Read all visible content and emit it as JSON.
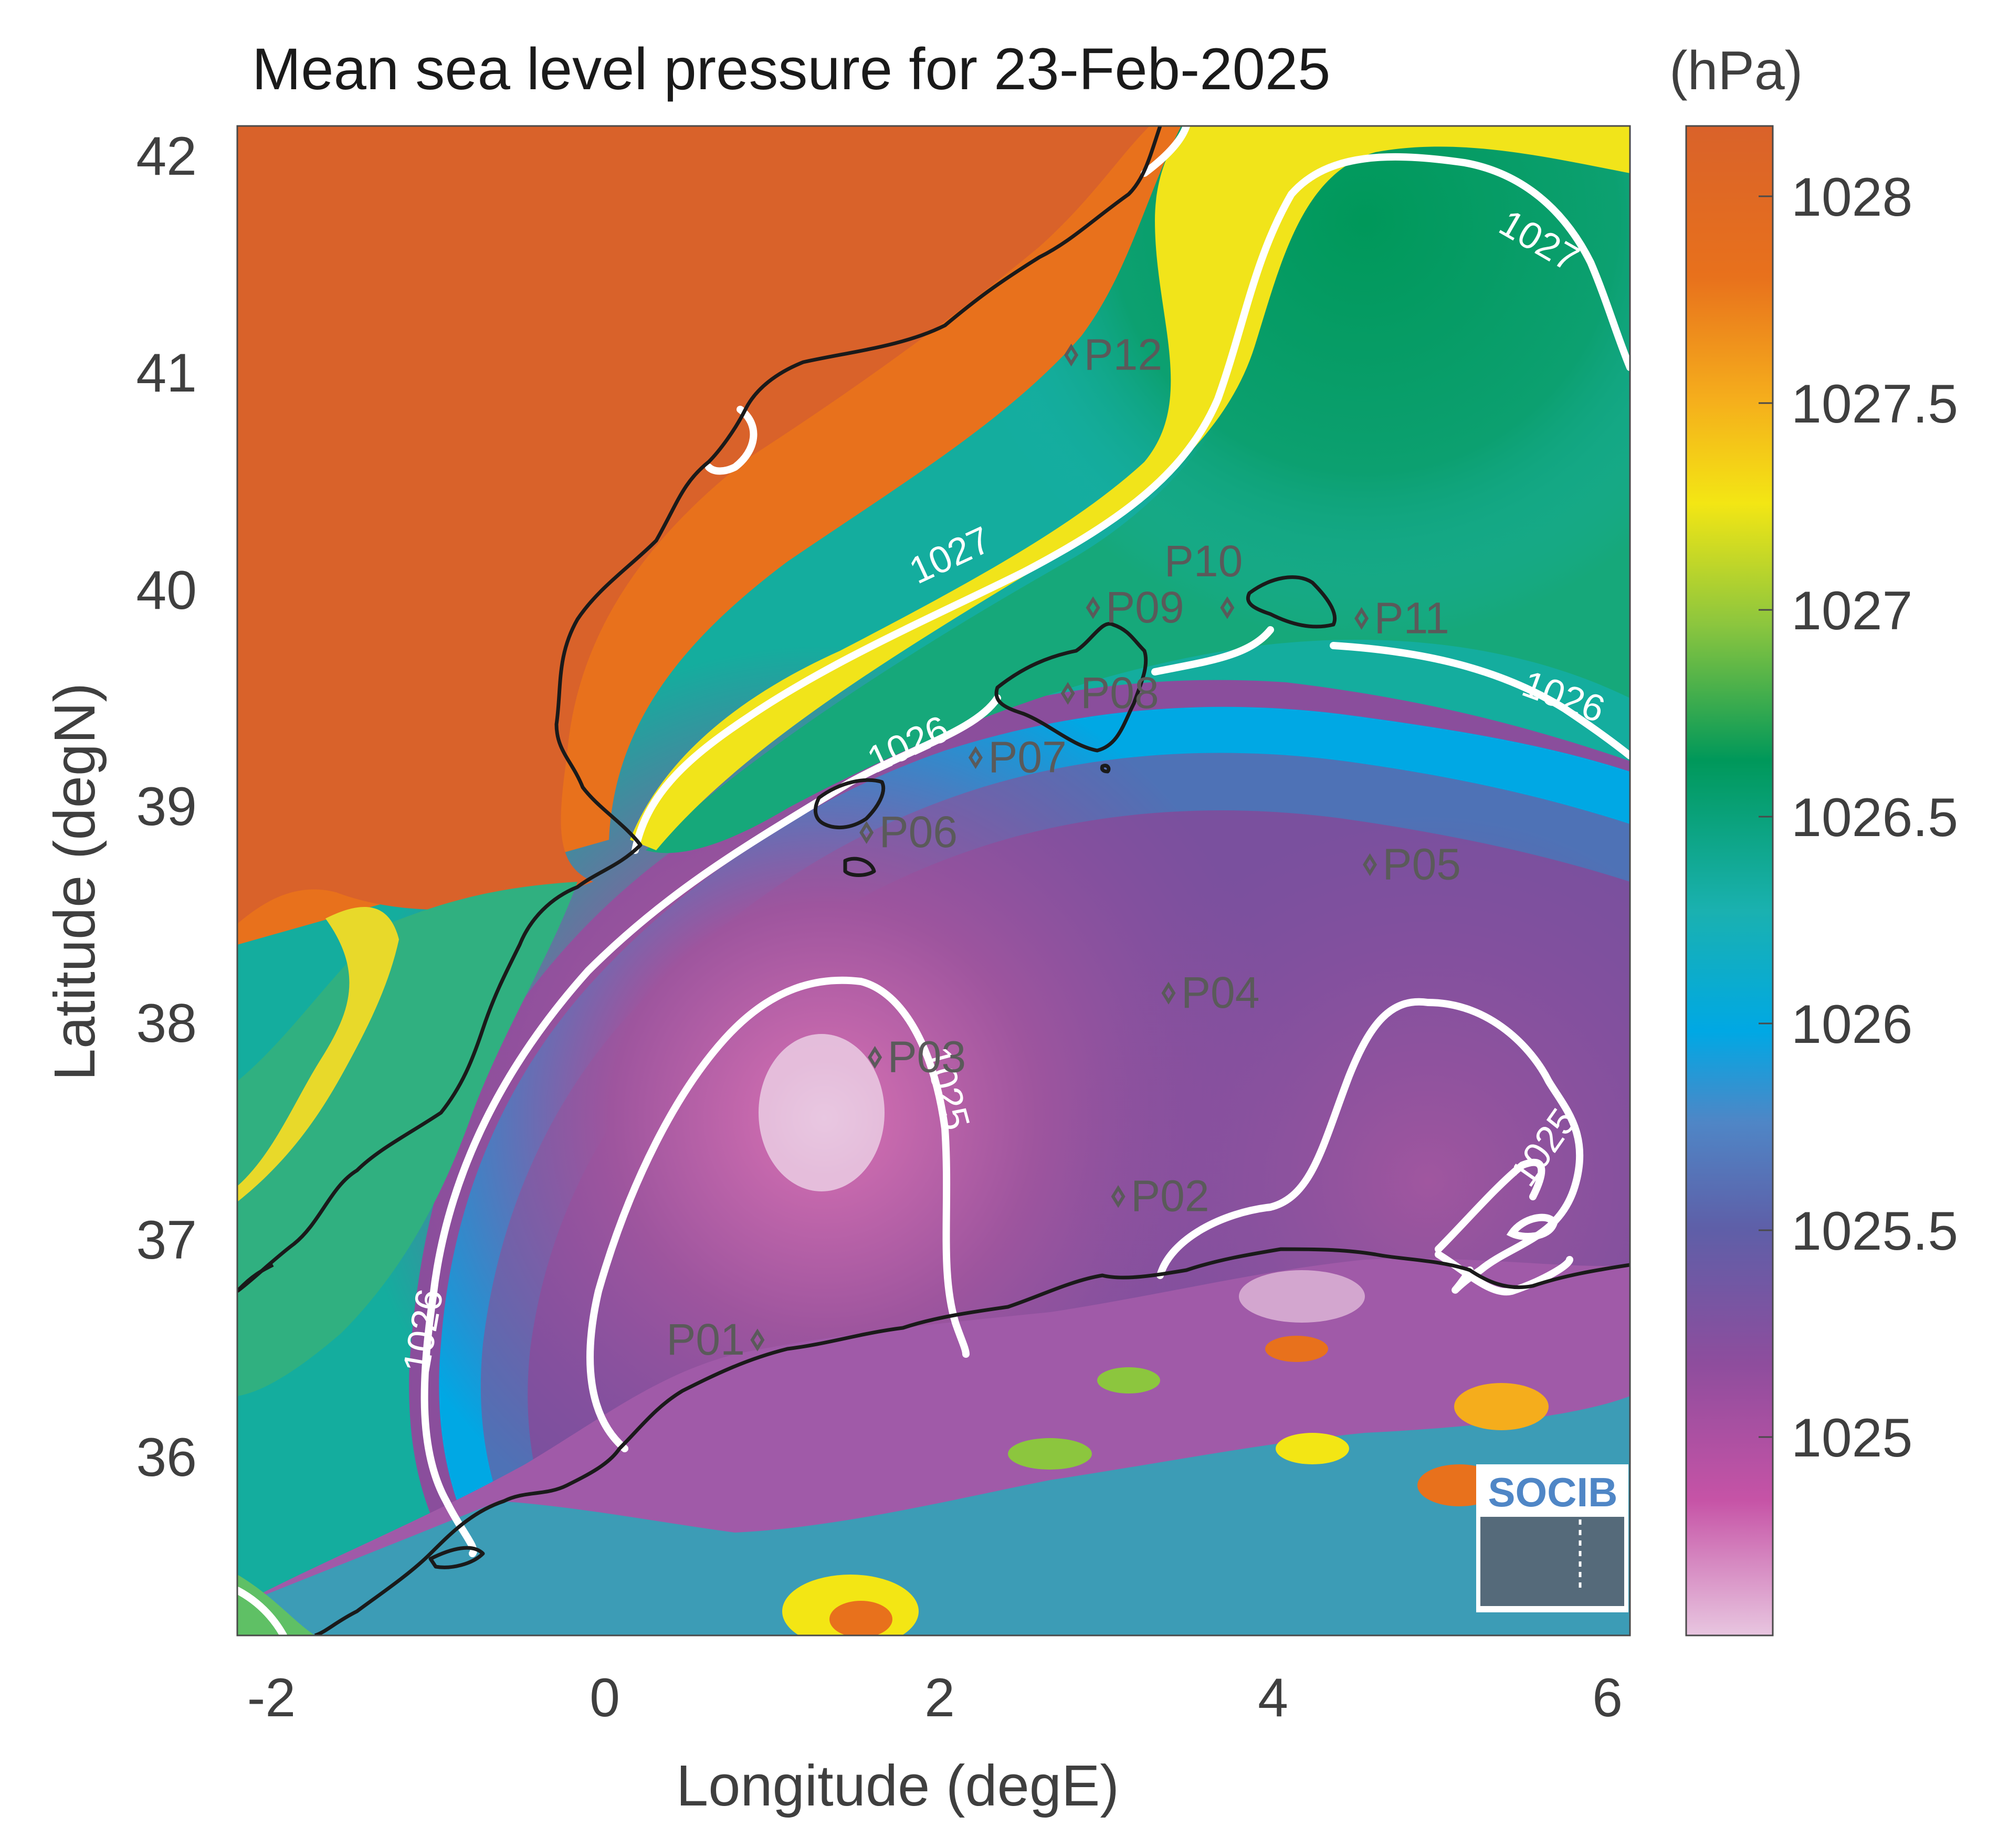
{
  "title": "Mean sea level pressure for 23-Feb-2025",
  "units_label": "(hPa)",
  "chart_data": {
    "type": "heatmap",
    "title": "Mean sea level pressure for 23-Feb-2025",
    "xlabel": "Longitude (degE)",
    "ylabel": "Latitude (degN)",
    "xlim": [
      -2.25,
      6.05
    ],
    "ylim": [
      35.1,
      42.15
    ],
    "xticks": [
      -2,
      0,
      2,
      4,
      6
    ],
    "xtick_labels": [
      "-2",
      "0",
      "2",
      "4",
      "6"
    ],
    "yticks": [
      36,
      37,
      38,
      39,
      40,
      41,
      42
    ],
    "ytick_labels": [
      "36",
      "37",
      "38",
      "39",
      "40",
      "41",
      "42"
    ],
    "colorbar": {
      "units": "(hPa)",
      "range": [
        1024.55,
        1028.2
      ],
      "ticks": [
        1025,
        1025.5,
        1026,
        1026.5,
        1027,
        1027.5,
        1028
      ],
      "tick_labels": [
        "1025",
        "1025.5",
        "1026",
        "1026.5",
        "1027",
        "1027.5",
        "1028"
      ],
      "colors": [
        "#e8c6e0",
        "#c653a6",
        "#8e4d9d",
        "#4f6bb0",
        "#00a8e4",
        "#1ab1b0",
        "#00985a",
        "#8cc63e",
        "#f3e614",
        "#f5ad1c",
        "#e8711c",
        "#d9622a"
      ]
    },
    "contour_labels": [
      "1025",
      "1025",
      "1026",
      "1026",
      "1026",
      "1027",
      "1027"
    ],
    "stations": [
      {
        "name": "P01",
        "lon": 0.85,
        "lat": 36.48
      },
      {
        "name": "P02",
        "lon": 3.0,
        "lat": 37.15
      },
      {
        "name": "P03",
        "lon": 1.55,
        "lat": 37.8
      },
      {
        "name": "P04",
        "lon": 3.3,
        "lat": 38.1
      },
      {
        "name": "P05",
        "lon": 4.5,
        "lat": 38.7
      },
      {
        "name": "P06",
        "lon": 1.5,
        "lat": 38.85
      },
      {
        "name": "P07",
        "lon": 2.15,
        "lat": 39.2
      },
      {
        "name": "P08",
        "lon": 2.7,
        "lat": 39.5
      },
      {
        "name": "P09",
        "lon": 2.85,
        "lat": 39.9
      },
      {
        "name": "P10",
        "lon": 3.65,
        "lat": 39.9
      },
      {
        "name": "P11",
        "lon": 4.45,
        "lat": 39.85
      },
      {
        "name": "P12",
        "lon": 2.72,
        "lat": 41.08
      }
    ],
    "logo_text": "SOCIB"
  }
}
